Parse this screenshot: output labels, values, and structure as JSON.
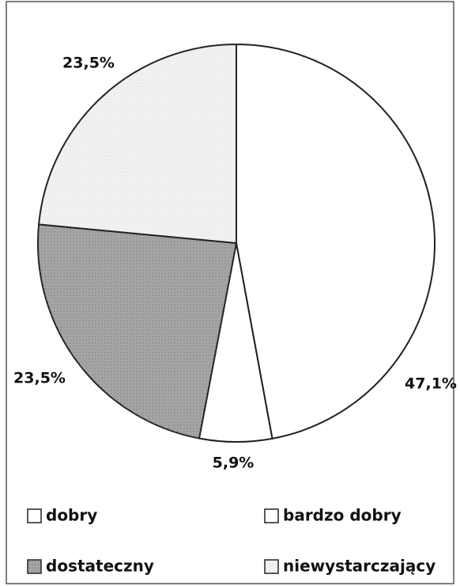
{
  "chart_data": {
    "type": "pie",
    "categories": [
      "dobry",
      "bardzo dobry",
      "dostateczny",
      "niewystarczający"
    ],
    "values": [
      47.1,
      5.9,
      23.5,
      23.5
    ],
    "value_labels": [
      "47,1%",
      "5,9%",
      "23,5%",
      "23,5%"
    ],
    "colors": [
      "#ffffff",
      "#ffffff",
      "#a8a8a8",
      "#f3f3f3"
    ],
    "legend": "bottom"
  }
}
